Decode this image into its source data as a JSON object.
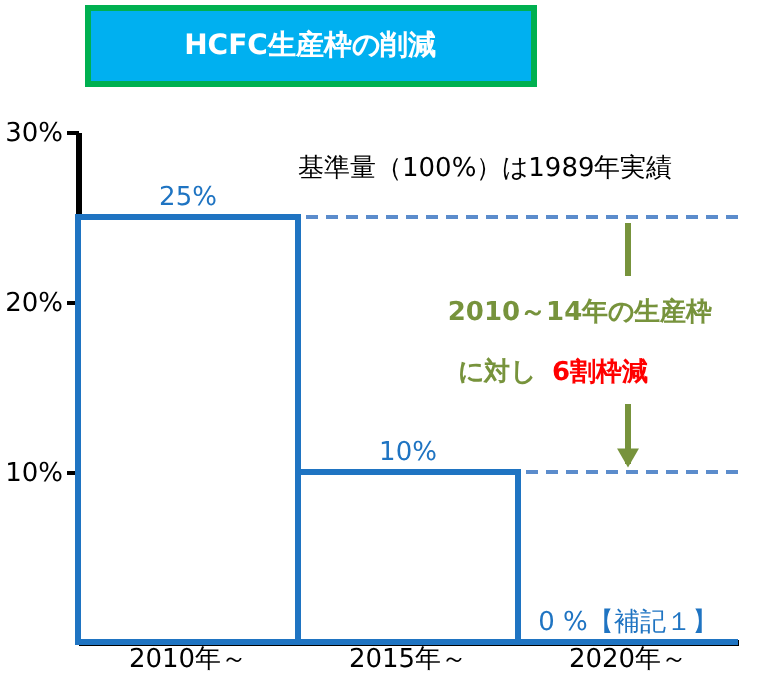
{
  "chart_data": {
    "type": "bar",
    "title": "HCFC生産枠の削減",
    "categories": [
      "2010年～",
      "2015年～",
      "2020年～"
    ],
    "values": [
      25,
      10,
      0
    ],
    "color": "#1f74c2",
    "value_labels": [
      "25%",
      "10%",
      "0 %【補記１】"
    ],
    "ylim": [
      0,
      30
    ],
    "yticks": [
      {
        "value": 10,
        "label": "10%"
      },
      {
        "value": 20,
        "label": "20%"
      },
      {
        "value": 30,
        "label": "30%"
      }
    ],
    "ref_lines": [
      {
        "axis": "y",
        "value": 25,
        "color": "#5b8ccc",
        "line_style": "dashed"
      },
      {
        "axis": "y",
        "value": 10,
        "color": "#5b8ccc",
        "line_style": "dashed"
      }
    ],
    "annotations": [
      "基準量（100%）は1989年実績",
      {
        "text": "2010～14年の生産枠",
        "x": "2020年～",
        "y": 25
      },
      "に対し",
      {
        "text": "6割枠減",
        "x": "2020年～",
        "y": 10
      }
    ],
    "grid": false
  }
}
